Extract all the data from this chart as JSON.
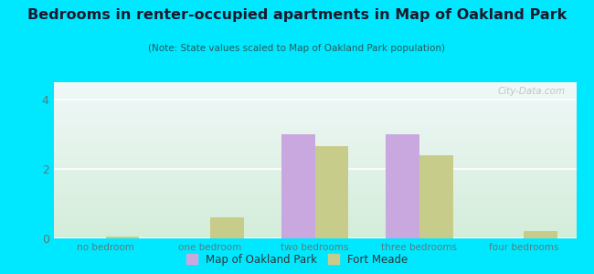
{
  "title": "Bedrooms in renter-occupied apartments in Map of Oakland Park",
  "subtitle": "(Note: State values scaled to Map of Oakland Park population)",
  "categories": [
    "no bedroom",
    "one bedroom",
    "two bedrooms",
    "three bedrooms",
    "four bedrooms"
  ],
  "oakland_park": [
    0,
    0,
    3.0,
    3.0,
    0
  ],
  "fort_meade": [
    0.05,
    0.6,
    2.65,
    2.4,
    0.2
  ],
  "bar_color_oakland": "#c9a8e0",
  "bar_color_fort_meade": "#c8cc8a",
  "background_outer": "#00e8ff",
  "background_plot_top": "#f0f8f8",
  "background_plot_bottom": "#d4edda",
  "title_color": "#1a1a2e",
  "subtitle_color": "#2a5a5a",
  "tick_color": "#5a7a7a",
  "ylim": [
    0,
    4.5
  ],
  "yticks": [
    0,
    2,
    4
  ],
  "bar_width": 0.32,
  "legend_label_1": "Map of Oakland Park",
  "legend_label_2": "Fort Meade",
  "watermark": "City-Data.com"
}
